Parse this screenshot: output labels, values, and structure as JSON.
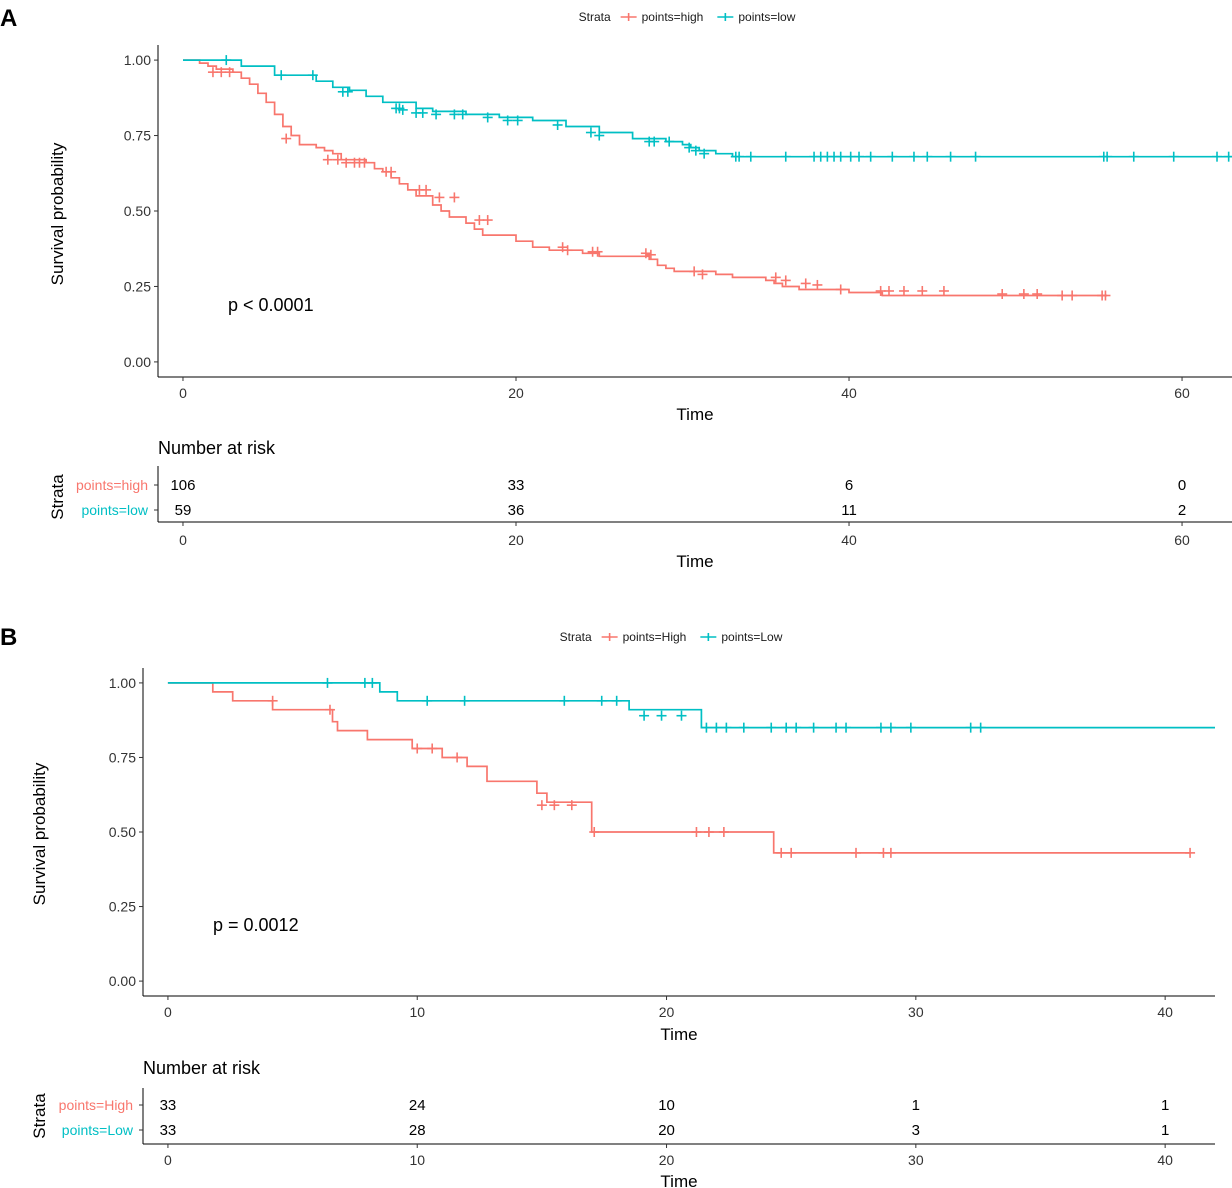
{
  "colors": {
    "high": "#F8766D",
    "low": "#00BFC4"
  },
  "chart_data": [
    {
      "type": "line",
      "panel": "A",
      "title": "",
      "xlabel": "Time",
      "ylabel": "Survival probability",
      "xlim": [
        -1.5,
        63
      ],
      "ylim": [
        -0.05,
        1.05
      ],
      "xticks": [
        0,
        20,
        40,
        60
      ],
      "yticks": [
        0.0,
        0.25,
        0.5,
        0.75,
        1.0
      ],
      "ytick_labels": [
        "0.00",
        "0.25",
        "0.50",
        "0.75",
        "1.00"
      ],
      "legend": {
        "title": "Strata",
        "position": "top",
        "labels": [
          "points=high",
          "points=low"
        ]
      },
      "pvalue": "p < 0.0001",
      "series": [
        {
          "name": "points=high",
          "steps": [
            [
              0,
              1.0
            ],
            [
              1,
              0.99
            ],
            [
              1.5,
              0.98
            ],
            [
              2,
              0.97
            ],
            [
              3,
              0.96
            ],
            [
              3.5,
              0.94
            ],
            [
              4,
              0.92
            ],
            [
              4.5,
              0.89
            ],
            [
              5,
              0.86
            ],
            [
              5.5,
              0.82
            ],
            [
              6,
              0.78
            ],
            [
              6.5,
              0.75
            ],
            [
              7,
              0.72
            ],
            [
              8,
              0.71
            ],
            [
              8.5,
              0.7
            ],
            [
              9,
              0.69
            ],
            [
              9.5,
              0.67
            ],
            [
              11,
              0.66
            ],
            [
              11.5,
              0.64
            ],
            [
              12,
              0.63
            ],
            [
              12.5,
              0.61
            ],
            [
              13,
              0.59
            ],
            [
              13.5,
              0.57
            ],
            [
              14,
              0.55
            ],
            [
              15,
              0.52
            ],
            [
              15.5,
              0.5
            ],
            [
              16,
              0.48
            ],
            [
              17,
              0.46
            ],
            [
              17.5,
              0.44
            ],
            [
              18,
              0.42
            ],
            [
              20,
              0.4
            ],
            [
              21,
              0.38
            ],
            [
              22,
              0.37
            ],
            [
              24,
              0.36
            ],
            [
              25,
              0.35
            ],
            [
              28,
              0.34
            ],
            [
              28.5,
              0.32
            ],
            [
              29,
              0.31
            ],
            [
              29.5,
              0.3
            ],
            [
              32,
              0.29
            ],
            [
              33,
              0.28
            ],
            [
              35,
              0.27
            ],
            [
              35.5,
              0.26
            ],
            [
              36,
              0.25
            ],
            [
              37,
              0.24
            ],
            [
              40,
              0.23
            ],
            [
              42,
              0.22
            ],
            [
              55.5,
              0.22
            ]
          ],
          "censors": [
            [
              1.8,
              0.96
            ],
            [
              2.3,
              0.96
            ],
            [
              2.8,
              0.96
            ],
            [
              6.2,
              0.74
            ],
            [
              8.7,
              0.67
            ],
            [
              9.3,
              0.67
            ],
            [
              9.8,
              0.66
            ],
            [
              10.3,
              0.66
            ],
            [
              10.6,
              0.66
            ],
            [
              10.9,
              0.66
            ],
            [
              12.2,
              0.63
            ],
            [
              12.5,
              0.63
            ],
            [
              14.2,
              0.57
            ],
            [
              14.6,
              0.57
            ],
            [
              15.4,
              0.545
            ],
            [
              16.3,
              0.545
            ],
            [
              17.8,
              0.47
            ],
            [
              18.3,
              0.47
            ],
            [
              22.8,
              0.38
            ],
            [
              23.1,
              0.37
            ],
            [
              24.6,
              0.365
            ],
            [
              24.9,
              0.365
            ],
            [
              27.8,
              0.36
            ],
            [
              28.1,
              0.355
            ],
            [
              30.7,
              0.3
            ],
            [
              31.2,
              0.29
            ],
            [
              35.6,
              0.28
            ],
            [
              36.2,
              0.27
            ],
            [
              37.4,
              0.26
            ],
            [
              38.1,
              0.255
            ],
            [
              39.5,
              0.24
            ],
            [
              41.9,
              0.235
            ],
            [
              42.4,
              0.235
            ],
            [
              43.3,
              0.235
            ],
            [
              44.4,
              0.235
            ],
            [
              45.7,
              0.235
            ],
            [
              49.2,
              0.225
            ],
            [
              50.5,
              0.225
            ],
            [
              51.3,
              0.225
            ],
            [
              52.8,
              0.22
            ],
            [
              53.4,
              0.22
            ],
            [
              55.2,
              0.22
            ],
            [
              55.4,
              0.22
            ]
          ]
        },
        {
          "name": "points=low",
          "steps": [
            [
              0,
              1.0
            ],
            [
              3.5,
              0.98
            ],
            [
              5.5,
              0.95
            ],
            [
              8,
              0.93
            ],
            [
              9,
              0.91
            ],
            [
              10,
              0.9
            ],
            [
              11,
              0.88
            ],
            [
              12,
              0.86
            ],
            [
              14,
              0.84
            ],
            [
              15,
              0.83
            ],
            [
              17,
              0.82
            ],
            [
              19,
              0.81
            ],
            [
              21,
              0.8
            ],
            [
              23,
              0.78
            ],
            [
              25,
              0.76
            ],
            [
              27,
              0.74
            ],
            [
              29,
              0.73
            ],
            [
              30,
              0.72
            ],
            [
              30.5,
              0.71
            ],
            [
              31,
              0.7
            ],
            [
              32,
              0.69
            ],
            [
              33,
              0.68
            ],
            [
              63,
              0.68
            ]
          ],
          "censors": [
            [
              2.6,
              1.0
            ],
            [
              5.9,
              0.95
            ],
            [
              7.8,
              0.95
            ],
            [
              9.6,
              0.895
            ],
            [
              9.9,
              0.895
            ],
            [
              12.8,
              0.84
            ],
            [
              13,
              0.84
            ],
            [
              13.2,
              0.835
            ],
            [
              14,
              0.825
            ],
            [
              14.4,
              0.825
            ],
            [
              15.2,
              0.82
            ],
            [
              16.3,
              0.82
            ],
            [
              16.8,
              0.82
            ],
            [
              18.3,
              0.81
            ],
            [
              19.5,
              0.8
            ],
            [
              20.1,
              0.8
            ],
            [
              22.5,
              0.785
            ],
            [
              24.5,
              0.76
            ],
            [
              25,
              0.75
            ],
            [
              28,
              0.73
            ],
            [
              28.3,
              0.73
            ],
            [
              29.2,
              0.73
            ],
            [
              30.4,
              0.71
            ],
            [
              30.8,
              0.7
            ],
            [
              31.3,
              0.69
            ],
            [
              33.2,
              0.68
            ],
            [
              33.4,
              0.68
            ],
            [
              34.1,
              0.68
            ],
            [
              36.2,
              0.68
            ],
            [
              37.9,
              0.68
            ],
            [
              38.3,
              0.68
            ],
            [
              38.7,
              0.68
            ],
            [
              39.1,
              0.68
            ],
            [
              39.5,
              0.68
            ],
            [
              40.1,
              0.68
            ],
            [
              40.6,
              0.68
            ],
            [
              41.3,
              0.68
            ],
            [
              42.6,
              0.68
            ],
            [
              43.9,
              0.68
            ],
            [
              44.7,
              0.68
            ],
            [
              46.1,
              0.68
            ],
            [
              47.6,
              0.68
            ],
            [
              55.3,
              0.68
            ],
            [
              55.5,
              0.68
            ],
            [
              57.1,
              0.68
            ],
            [
              59.5,
              0.68
            ],
            [
              62.1,
              0.68
            ],
            [
              62.8,
              0.68
            ]
          ]
        }
      ],
      "risk_table": {
        "title": "Number at risk",
        "ylabel": "Strata",
        "xlabel": "Time",
        "times": [
          0,
          20,
          40,
          60
        ],
        "rows": [
          {
            "name": "points=high",
            "values": [
              "106",
              "33",
              "6",
              "0"
            ]
          },
          {
            "name": "points=low",
            "values": [
              "59",
              "36",
              "11",
              "2"
            ]
          }
        ]
      }
    },
    {
      "type": "line",
      "panel": "B",
      "title": "",
      "xlabel": "Time",
      "ylabel": "Survival probability",
      "xlim": [
        -1,
        42
      ],
      "ylim": [
        -0.05,
        1.05
      ],
      "xticks": [
        0,
        10,
        20,
        30,
        40
      ],
      "yticks": [
        0.0,
        0.25,
        0.5,
        0.75,
        1.0
      ],
      "ytick_labels": [
        "0.00",
        "0.25",
        "0.50",
        "0.75",
        "1.00"
      ],
      "legend": {
        "title": "Strata",
        "position": "top",
        "labels": [
          "points=High",
          "points=Low"
        ]
      },
      "pvalue": "p = 0.0012",
      "series": [
        {
          "name": "points=High",
          "steps": [
            [
              0,
              1.0
            ],
            [
              1.8,
              0.97
            ],
            [
              2.6,
              0.94
            ],
            [
              4.2,
              0.91
            ],
            [
              6.6,
              0.87
            ],
            [
              6.8,
              0.84
            ],
            [
              8,
              0.81
            ],
            [
              9.8,
              0.78
            ],
            [
              11,
              0.75
            ],
            [
              12,
              0.72
            ],
            [
              12.8,
              0.67
            ],
            [
              14.8,
              0.63
            ],
            [
              15.2,
              0.6
            ],
            [
              17,
              0.5
            ],
            [
              24.3,
              0.43
            ],
            [
              41,
              0.43
            ]
          ],
          "censors": [
            [
              4.2,
              0.94
            ],
            [
              6.5,
              0.91
            ],
            [
              10,
              0.78
            ],
            [
              10.6,
              0.78
            ],
            [
              11.6,
              0.75
            ],
            [
              15,
              0.59
            ],
            [
              15.5,
              0.59
            ],
            [
              16.2,
              0.59
            ],
            [
              17.1,
              0.5
            ],
            [
              21.2,
              0.5
            ],
            [
              21.7,
              0.5
            ],
            [
              22.3,
              0.5
            ],
            [
              24.6,
              0.43
            ],
            [
              25,
              0.43
            ],
            [
              27.6,
              0.43
            ],
            [
              28.7,
              0.43
            ],
            [
              29,
              0.43
            ],
            [
              41,
              0.43
            ]
          ]
        },
        {
          "name": "points=Low",
          "steps": [
            [
              0,
              1.0
            ],
            [
              8.5,
              0.97
            ],
            [
              9.2,
              0.94
            ],
            [
              18.5,
              0.91
            ],
            [
              21.4,
              0.85
            ],
            [
              42,
              0.85
            ]
          ],
          "censors": [
            [
              6.4,
              1.0
            ],
            [
              7.9,
              1.0
            ],
            [
              8.2,
              1.0
            ],
            [
              10.4,
              0.94
            ],
            [
              11.9,
              0.94
            ],
            [
              15.9,
              0.94
            ],
            [
              17.4,
              0.94
            ],
            [
              18,
              0.94
            ],
            [
              19.1,
              0.89
            ],
            [
              19.8,
              0.89
            ],
            [
              20.6,
              0.89
            ],
            [
              21.6,
              0.85
            ],
            [
              22,
              0.85
            ],
            [
              22.4,
              0.85
            ],
            [
              23.1,
              0.85
            ],
            [
              24.2,
              0.85
            ],
            [
              24.8,
              0.85
            ],
            [
              25.2,
              0.85
            ],
            [
              25.9,
              0.85
            ],
            [
              26.8,
              0.85
            ],
            [
              27.2,
              0.85
            ],
            [
              28.6,
              0.85
            ],
            [
              29,
              0.85
            ],
            [
              29.8,
              0.85
            ],
            [
              32.2,
              0.85
            ],
            [
              32.6,
              0.85
            ]
          ]
        }
      ],
      "risk_table": {
        "title": "Number at risk",
        "ylabel": "Strata",
        "xlabel": "Time",
        "times": [
          0,
          10,
          20,
          30,
          40
        ],
        "rows": [
          {
            "name": "points=High",
            "values": [
              "33",
              "24",
              "10",
              "1",
              "1"
            ]
          },
          {
            "name": "points=Low",
            "values": [
              "33",
              "28",
              "20",
              "3",
              "1"
            ]
          }
        ]
      }
    }
  ]
}
